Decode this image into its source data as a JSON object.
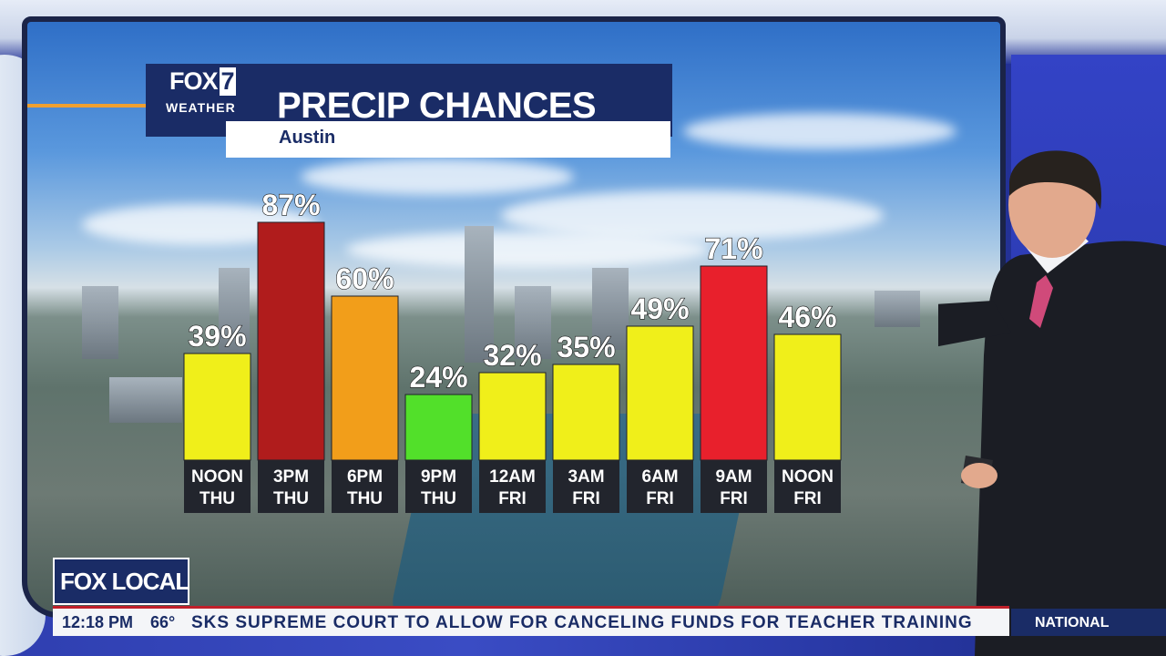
{
  "header": {
    "logo_main": "FOX",
    "logo_number": "7",
    "logo_sub": "WEATHER",
    "title": "PRECIP CHANCES",
    "location": "Austin"
  },
  "chart_data": {
    "type": "bar",
    "title": "PRECIP CHANCES",
    "subtitle": "Austin",
    "categories": [
      [
        "NOON",
        "THU"
      ],
      [
        "3PM",
        "THU"
      ],
      [
        "6PM",
        "THU"
      ],
      [
        "9PM",
        "THU"
      ],
      [
        "12AM",
        "FRI"
      ],
      [
        "3AM",
        "FRI"
      ],
      [
        "6AM",
        "FRI"
      ],
      [
        "9AM",
        "FRI"
      ],
      [
        "NOON",
        "FRI"
      ]
    ],
    "values": [
      39,
      87,
      60,
      24,
      32,
      35,
      49,
      71,
      46
    ],
    "value_labels": [
      "39%",
      "87%",
      "60%",
      "24%",
      "32%",
      "35%",
      "49%",
      "71%",
      "46%"
    ],
    "colors": [
      "#f0ef1a",
      "#b01c1c",
      "#f29e1a",
      "#52e02a",
      "#f0ef1a",
      "#f0ef1a",
      "#f0ef1a",
      "#e8202c",
      "#f0ef1a"
    ],
    "ylim": [
      0,
      100
    ],
    "unit": "%"
  },
  "lower_third": {
    "brand": "FOX LOCAL",
    "time": "12:18 PM",
    "temperature": "66°",
    "crawl": "SKS SUPREME COURT TO ALLOW FOR CANCELING FUNDS FOR TEACHER TRAINING",
    "section": "NATIONAL"
  }
}
